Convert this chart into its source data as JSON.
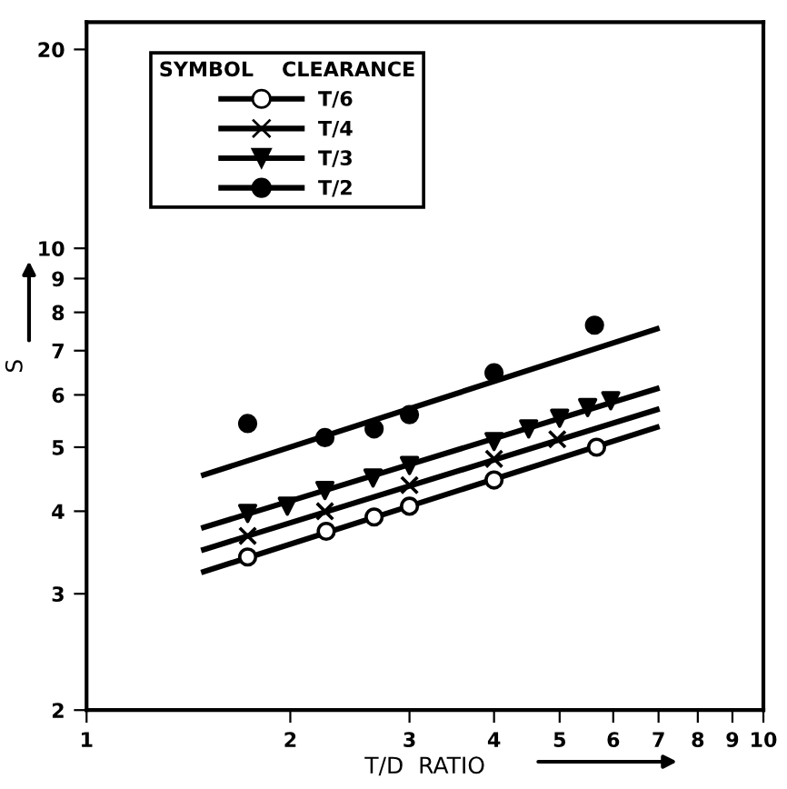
{
  "chart_data": {
    "type": "scatter",
    "xlabel": "T/D  RATIO",
    "ylabel": "S",
    "legend_title": "SYMBOL    CLEARANCE",
    "legend": "top left",
    "log": "xy",
    "grid": false,
    "xlim": [
      1,
      10
    ],
    "ylim": [
      2,
      22
    ],
    "xticks": [
      1,
      2,
      3,
      4,
      5,
      6,
      7,
      8,
      9,
      10
    ],
    "yticks": [
      2,
      3,
      4,
      5,
      6,
      7,
      8,
      9,
      10,
      20
    ],
    "series": [
      {
        "name": "T/6",
        "marker": "circle",
        "color": "#ffffff",
        "x": [
          1.73,
          2.26,
          2.66,
          3.0,
          4.0,
          5.67
        ],
        "values": [
          3.41,
          3.73,
          3.92,
          4.07,
          4.46,
          5.0
        ]
      },
      {
        "name": "T/4",
        "marker": "cross",
        "color": "#000000",
        "x": [
          1.73,
          2.25,
          3.0,
          4.0,
          4.96
        ],
        "values": [
          3.67,
          4.0,
          4.38,
          4.8,
          5.14
        ]
      },
      {
        "name": "T/3",
        "marker": "triangle",
        "color": "#000000",
        "x": [
          1.73,
          1.98,
          2.25,
          2.65,
          3.0,
          4.0,
          4.5,
          5.0,
          5.5,
          5.95
        ],
        "values": [
          3.97,
          4.07,
          4.3,
          4.49,
          4.69,
          5.1,
          5.33,
          5.53,
          5.74,
          5.88
        ]
      },
      {
        "name": "T/2",
        "marker": "circle",
        "color": "#000000",
        "x": [
          1.73,
          2.25,
          2.66,
          3.0,
          4.0,
          5.63
        ],
        "values": [
          5.43,
          5.17,
          5.33,
          5.6,
          6.48,
          7.65
        ]
      },
      {
        "type": "line",
        "color": "#000000",
        "x": [
          1.49,
          6.96
        ],
        "values": [
          3.24,
          5.36
        ]
      },
      {
        "type": "line",
        "color": "#000000",
        "x": [
          1.49,
          6.96
        ],
        "values": [
          3.5,
          5.7
        ]
      },
      {
        "type": "line",
        "color": "#000000",
        "x": [
          1.49,
          6.96
        ],
        "values": [
          3.78,
          6.13
        ]
      },
      {
        "type": "line",
        "color": "#000000",
        "x": [
          1.49,
          6.96
        ],
        "values": [
          4.54,
          7.55
        ]
      }
    ]
  }
}
